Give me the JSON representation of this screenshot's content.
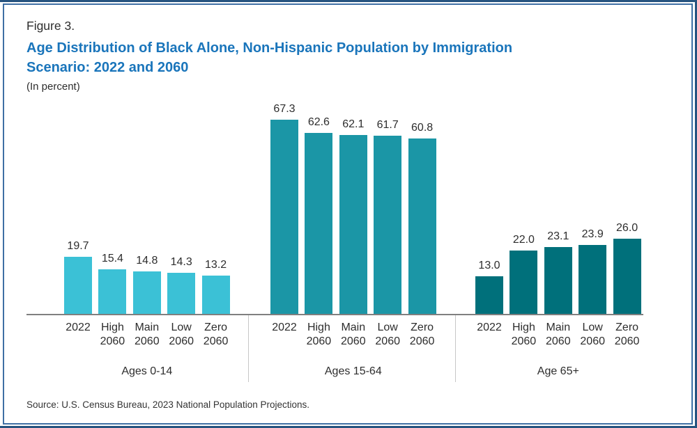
{
  "header": {
    "figure_label": "Figure 3.",
    "title_lines": [
      "Age Distribution of Black Alone, Non-Hispanic Population by Immigration",
      "Scenario: 2022 and 2060"
    ],
    "unit_note": "(In percent)",
    "title_color": "#1a75bb"
  },
  "footer": {
    "source": "Source: U.S. Census Bureau, 2023 National Population Projections."
  },
  "chart_data": {
    "type": "bar",
    "title": "Age Distribution of Black Alone, Non-Hispanic Population by Immigration Scenario: 2022 and 2060",
    "unit": "percent",
    "value_labels_shown": true,
    "grid": false,
    "legend": "none",
    "y_axis_shown": false,
    "ylim": [
      0,
      70
    ],
    "categories": [
      "2022",
      "High 2060",
      "Main 2060",
      "Low 2060",
      "Zero 2060"
    ],
    "groups": [
      {
        "label": "Ages 0-14",
        "color": "#3bc1d6",
        "values": [
          19.7,
          15.4,
          14.8,
          14.3,
          13.2
        ]
      },
      {
        "label": "Ages 15-64",
        "color": "#1b96a6",
        "values": [
          67.3,
          62.6,
          62.1,
          61.7,
          60.8
        ]
      },
      {
        "label": "Age 65+",
        "color": "#00707b",
        "values": [
          13.0,
          22.0,
          23.1,
          23.9,
          26.0
        ]
      }
    ],
    "colors": {
      "axis_line": "#7f7f7f",
      "group_divider": "#c7c7c7",
      "label_text": "#2d2d2d"
    }
  }
}
